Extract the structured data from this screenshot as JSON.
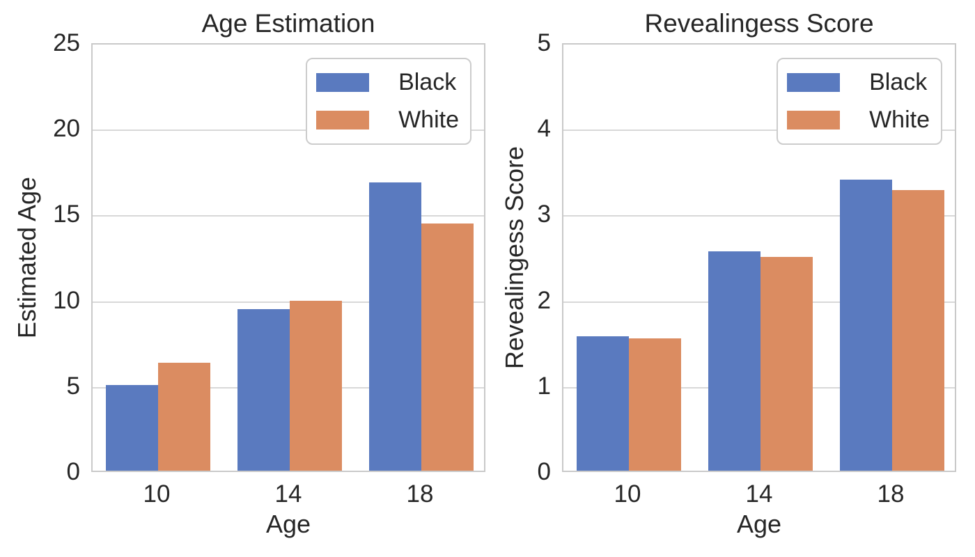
{
  "figure": {
    "background": "#ffffff",
    "text_color": "#262626",
    "grid_color": "#d8d8d8",
    "spine_color": "#c9c9c9"
  },
  "chart_data": [
    {
      "type": "bar",
      "title": "Age Estimation",
      "xlabel": "Age",
      "ylabel": "Estimated Age",
      "categories": [
        "10",
        "14",
        "18"
      ],
      "series": [
        {
          "name": "Black",
          "color": "#5a7abf",
          "values": [
            5.0,
            9.4,
            16.8
          ]
        },
        {
          "name": "White",
          "color": "#db8c61",
          "values": [
            6.3,
            9.9,
            14.4
          ]
        }
      ],
      "ylim": [
        0,
        25
      ],
      "yticks": [
        0,
        5,
        10,
        15,
        20,
        25
      ],
      "grid": true,
      "legend": {
        "position": "upper right",
        "entries": [
          "Black",
          "White"
        ]
      }
    },
    {
      "type": "bar",
      "title": "Revealingess Score",
      "xlabel": "Age",
      "ylabel": "Revealingess Score",
      "categories": [
        "10",
        "14",
        "18"
      ],
      "series": [
        {
          "name": "Black",
          "color": "#5a7abf",
          "values": [
            1.57,
            2.56,
            3.39
          ]
        },
        {
          "name": "White",
          "color": "#db8c61",
          "values": [
            1.54,
            2.49,
            3.27
          ]
        }
      ],
      "ylim": [
        0,
        5
      ],
      "yticks": [
        0,
        1,
        2,
        3,
        4,
        5
      ],
      "grid": true,
      "legend": {
        "position": "upper right",
        "entries": [
          "Black",
          "White"
        ]
      }
    }
  ]
}
